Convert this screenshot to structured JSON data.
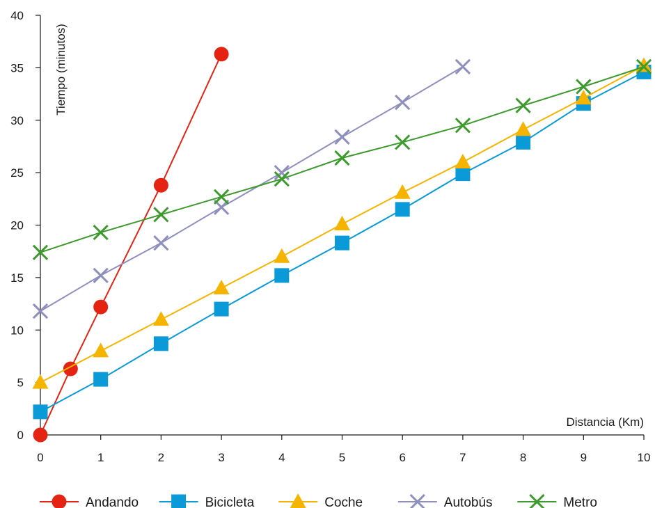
{
  "chart_data": {
    "type": "line",
    "title": "",
    "xlabel": "Distancia (Km)",
    "ylabel": "Tiempo (minutos)",
    "xlim": [
      0,
      10
    ],
    "ylim": [
      0,
      40
    ],
    "x_ticks": [
      0,
      1,
      2,
      3,
      4,
      5,
      6,
      7,
      8,
      9,
      10
    ],
    "y_ticks": [
      0,
      5,
      10,
      15,
      20,
      25,
      30,
      35,
      40
    ],
    "grid": false,
    "legend_position": "bottom",
    "series": [
      {
        "name": "Andando",
        "color": "#e42313",
        "marker": "circle",
        "x": [
          0,
          0.5,
          1,
          2,
          3
        ],
        "y": [
          0,
          6.3,
          12.2,
          23.8,
          36.3
        ]
      },
      {
        "name": "Bicicleta",
        "color": "#0a9ad8",
        "marker": "square",
        "x": [
          0,
          1,
          2,
          3,
          4,
          5,
          6,
          7,
          8,
          9,
          10
        ],
        "y": [
          2.2,
          5.3,
          8.7,
          12.0,
          15.2,
          18.3,
          21.5,
          24.9,
          27.9,
          31.6,
          34.6
        ]
      },
      {
        "name": "Coche",
        "color": "#f5b400",
        "marker": "triangle",
        "x": [
          0,
          1,
          2,
          3,
          4,
          5,
          6,
          7,
          8,
          9,
          10
        ],
        "y": [
          5.0,
          8.0,
          11.0,
          14.0,
          17.0,
          20.1,
          23.1,
          26.0,
          29.1,
          32.1,
          35.2
        ]
      },
      {
        "name": "Autobús",
        "color": "#8f8fbe",
        "marker": "x",
        "x": [
          0,
          1,
          2,
          3,
          4,
          5,
          6,
          7
        ],
        "y": [
          11.8,
          15.2,
          18.3,
          21.7,
          25.0,
          28.4,
          31.7,
          35.1
        ]
      },
      {
        "name": "Metro",
        "color": "#3d9a2c",
        "marker": "x",
        "x": [
          0,
          1,
          2,
          3,
          4,
          5,
          6,
          7,
          8,
          9,
          10
        ],
        "y": [
          17.4,
          19.3,
          21.0,
          22.7,
          24.4,
          26.4,
          27.9,
          29.5,
          31.4,
          33.2,
          35.1
        ]
      }
    ]
  }
}
